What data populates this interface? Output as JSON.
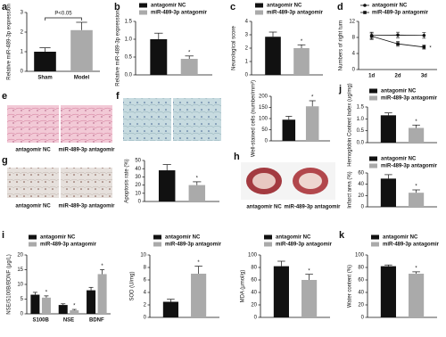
{
  "chart_data": [
    {
      "type": "bar",
      "panel": "a",
      "ylabel": "Relative miR-489-3p expression",
      "categories": [
        "Sham",
        "Model"
      ],
      "values": [
        1.0,
        2.1
      ],
      "errors": [
        0.2,
        0.4
      ],
      "colors": [
        "#111111",
        "#aaaaaa"
      ],
      "ylim": [
        0,
        3
      ],
      "yticks": [
        0,
        1,
        2,
        3
      ],
      "annotation": "P<0.05"
    },
    {
      "type": "bar",
      "panel": "b",
      "ylabel": "Relative miR-489-3p expression",
      "categories": [
        null
      ],
      "series": [
        {
          "name": "antagomir NC",
          "color": "#111111",
          "values": [
            1.0
          ],
          "errors": [
            0.17
          ]
        },
        {
          "name": "miR-489-3p antagomir",
          "color": "#aaaaaa",
          "values": [
            0.45
          ],
          "errors": [
            0.08
          ],
          "significance": [
            "*"
          ]
        }
      ],
      "ylim": [
        0,
        1.5
      ],
      "yticks": [
        {
          "value": 0,
          "label": "0.0"
        },
        {
          "value": 0.5,
          "label": "0.5"
        },
        {
          "value": 1,
          "label": "1.0"
        },
        {
          "value": 1.5,
          "label": "1.5"
        }
      ]
    },
    {
      "type": "bar",
      "panel": "c",
      "ylabel": "Neurological score",
      "categories": [
        null
      ],
      "series": [
        {
          "name": "antagomir NC",
          "color": "#111111",
          "values": [
            2.85
          ],
          "errors": [
            0.35
          ]
        },
        {
          "name": "miR-489-3p antagomir",
          "color": "#aaaaaa",
          "values": [
            2.0
          ],
          "errors": [
            0.25
          ],
          "significance": [
            "*"
          ]
        }
      ],
      "ylim": [
        0,
        4
      ],
      "yticks": [
        0,
        1,
        2,
        3,
        4
      ]
    },
    {
      "type": "line",
      "panel": "d",
      "ylabel": "Numbers of right turn",
      "categories": [
        "1d",
        "2d",
        "3d"
      ],
      "series": [
        {
          "name": "antagomir NC",
          "color": "#111111",
          "values": [
            8.5,
            8.6,
            8.5
          ],
          "errors": [
            0.8,
            0.7,
            0.7
          ]
        },
        {
          "name": "miR-489-3p antagomir",
          "color": "#111111",
          "values": [
            8.3,
            6.4,
            5.6
          ],
          "errors": [
            0.8,
            0.6,
            0.5
          ],
          "significance": [
            null,
            null,
            "*"
          ]
        }
      ],
      "ylim": [
        0,
        12
      ],
      "yticks": [
        0,
        4,
        8,
        12
      ]
    },
    {
      "type": "bar",
      "ylabel": "Well-stained cells (number/mm²)",
      "categories": [
        null
      ],
      "series": [
        {
          "color": "#111111",
          "values": [
            95
          ],
          "errors": [
            15
          ]
        },
        {
          "color": "#aaaaaa",
          "values": [
            155
          ],
          "errors": [
            25
          ],
          "significance": [
            "*"
          ]
        }
      ],
      "ylim": [
        0,
        200
      ],
      "yticks": [
        0,
        50,
        100,
        150,
        200
      ]
    },
    {
      "type": "bar",
      "panel": "j",
      "ylabel": "Hemoglobin Content Index (ug/mg)",
      "categories": [
        null
      ],
      "series": [
        {
          "name": "antagomir NC",
          "color": "#111111",
          "values": [
            1.15
          ],
          "errors": [
            0.1
          ]
        },
        {
          "name": "miR-489-3p antagomir",
          "color": "#aaaaaa",
          "values": [
            0.62
          ],
          "errors": [
            0.12
          ],
          "significance": [
            "*"
          ]
        }
      ],
      "ylim": [
        0,
        1.5
      ],
      "yticks": [
        {
          "value": 0,
          "label": "0.0"
        },
        {
          "value": 0.5,
          "label": "0.5"
        },
        {
          "value": 1,
          "label": "1.0"
        },
        {
          "value": 1.5,
          "label": "1.5"
        }
      ]
    },
    {
      "type": "bar",
      "ylabel": "Apoptosis rate (%)",
      "categories": [
        null
      ],
      "series": [
        {
          "color": "#111111",
          "values": [
            38
          ],
          "errors": [
            7
          ]
        },
        {
          "color": "#aaaaaa",
          "values": [
            20
          ],
          "errors": [
            4
          ],
          "significance": [
            "*"
          ]
        }
      ],
      "ylim": [
        0,
        50
      ],
      "yticks": [
        0,
        10,
        20,
        30,
        40,
        50
      ]
    },
    {
      "type": "bar",
      "ylabel": "Infarct area (%)",
      "categories": [
        null
      ],
      "series": [
        {
          "name": "antagomir NC",
          "color": "#111111",
          "values": [
            50
          ],
          "errors": [
            7
          ]
        },
        {
          "name": "miR-489-3p antagomir",
          "color": "#aaaaaa",
          "values": [
            25
          ],
          "errors": [
            5
          ],
          "significance": [
            "*"
          ]
        }
      ],
      "ylim": [
        0,
        60
      ],
      "yticks": [
        0,
        20,
        40,
        60
      ]
    },
    {
      "type": "bar",
      "panel": "i",
      "ylabel": "NSE/S100B/BDNF (μg/L)",
      "categories": [
        "S100B",
        "NSE",
        "BDNF"
      ],
      "series": [
        {
          "name": "antagomir NC",
          "color": "#111111",
          "values": [
            6.5,
            3.0,
            8.0
          ],
          "errors": [
            0.8,
            0.4,
            1.0
          ]
        },
        {
          "name": "miR-489-3p antagomir",
          "color": "#aaaaaa",
          "values": [
            5.5,
            1.2,
            13.5
          ],
          "errors": [
            0.6,
            0.3,
            1.5
          ],
          "significance": [
            "*",
            "*",
            "*"
          ]
        }
      ],
      "ylim": [
        0,
        20
      ],
      "yticks": [
        0,
        5,
        10,
        15,
        20
      ]
    },
    {
      "type": "bar",
      "ylabel": "SOD (U/mg)",
      "categories": [
        null
      ],
      "series": [
        {
          "name": "antagomir NC",
          "color": "#111111",
          "values": [
            2.5
          ],
          "errors": [
            0.4
          ]
        },
        {
          "name": "miR-489-3p antagomir",
          "color": "#aaaaaa",
          "values": [
            7.0
          ],
          "errors": [
            1.2
          ],
          "significance": [
            "*"
          ]
        }
      ],
      "ylim": [
        0,
        10
      ],
      "yticks": [
        0,
        2,
        4,
        6,
        8,
        10
      ]
    },
    {
      "type": "bar",
      "ylabel": "MDA (μmol/g)",
      "categories": [
        null
      ],
      "series": [
        {
          "name": "antagomir NC",
          "color": "#111111",
          "values": [
            82
          ],
          "errors": [
            8
          ]
        },
        {
          "name": "miR-489-3p antagomir",
          "color": "#aaaaaa",
          "values": [
            60
          ],
          "errors": [
            9
          ],
          "significance": [
            "*"
          ]
        }
      ],
      "ylim": [
        0,
        100
      ],
      "yticks": [
        0,
        20,
        40,
        60,
        80,
        100
      ]
    },
    {
      "type": "bar",
      "panel": "k",
      "ylabel": "Water content (%)",
      "categories": [
        null
      ],
      "series": [
        {
          "name": "antagomir NC",
          "color": "#111111",
          "values": [
            82
          ],
          "errors": [
            2
          ]
        },
        {
          "name": "miR-489-3p antagomir",
          "color": "#aaaaaa",
          "values": [
            70
          ],
          "errors": [
            3
          ],
          "significance": [
            "*"
          ]
        }
      ],
      "ylim": [
        0,
        100
      ],
      "yticks": [
        0,
        20,
        40,
        60,
        80,
        100
      ]
    }
  ],
  "image_panels": [
    {
      "panel": "e",
      "captions": [
        "antagomir NC",
        "miR-489-3p antagomir"
      ]
    },
    {
      "panel": "f"
    },
    {
      "panel": "g",
      "captions": [
        "antagomir NC",
        "miR-489-3p antagomir"
      ]
    },
    {
      "panel": "h",
      "captions": [
        "antagomir NC",
        "miR-489-3p antagomir"
      ]
    }
  ]
}
